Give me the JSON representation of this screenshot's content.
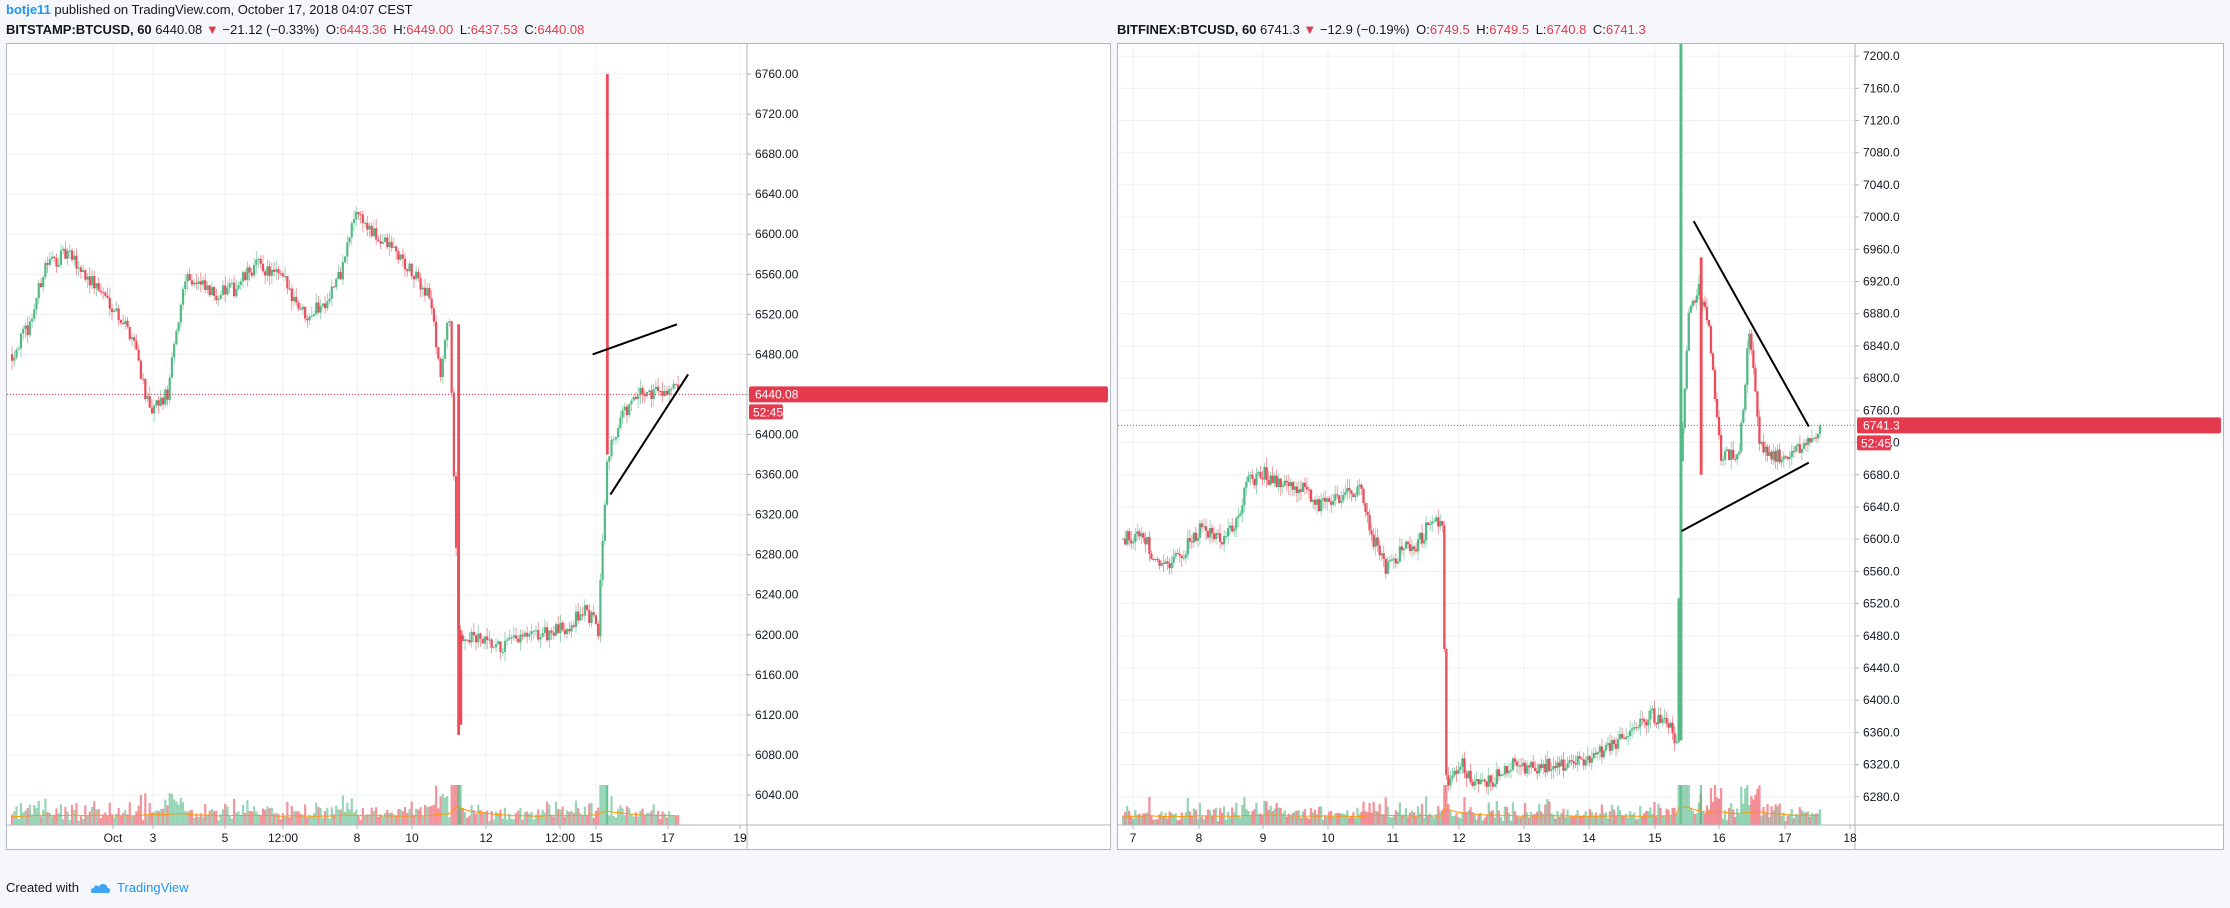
{
  "topbar": {
    "author": "botje11",
    "text": "published on TradingView.com, October 17, 2018 04:07 CEST"
  },
  "footer": {
    "created": "Created with",
    "brand": "TradingView"
  },
  "colors": {
    "up": "#53b987",
    "down": "#eb4d5c",
    "ma": "#ff9800",
    "trendline": "#000000",
    "price_line": "#e53a4d",
    "grid": "#eef0f4"
  },
  "chart_data": [
    {
      "type": "candlestick",
      "symbol": "BITSTAMP:BTCUSD, 60",
      "last": "6440.08",
      "change": "−21.12 (−0.33%)",
      "ohlc": {
        "O": "6443.36",
        "H": "6449.00",
        "L": "6437.53",
        "C": "6440.08"
      },
      "price_label": "6440.08",
      "countdown": "52:45",
      "ylim": [
        6010,
        6790
      ],
      "y_ticks": [
        "6760.00",
        "6720.00",
        "6680.00",
        "6640.00",
        "6600.00",
        "6560.00",
        "6520.00",
        "6480.00",
        "6440.00",
        "6400.00",
        "6360.00",
        "6320.00",
        "6280.00",
        "6240.00",
        "6200.00",
        "6160.00",
        "6120.00",
        "6080.00",
        "6040.00"
      ],
      "x_ticks": [
        "Oct",
        "3",
        "5",
        "12:00",
        "8",
        "10",
        "12",
        "12:00",
        "15",
        "17",
        "19"
      ],
      "current_price": 6440.08,
      "anchors": [
        [
          0,
          6480
        ],
        [
          8,
          6510
        ],
        [
          15,
          6570
        ],
        [
          25,
          6580
        ],
        [
          35,
          6555
        ],
        [
          45,
          6530
        ],
        [
          55,
          6495
        ],
        [
          62,
          6420
        ],
        [
          70,
          6440
        ],
        [
          78,
          6560
        ],
        [
          90,
          6540
        ],
        [
          100,
          6545
        ],
        [
          110,
          6570
        ],
        [
          122,
          6555
        ],
        [
          132,
          6520
        ],
        [
          140,
          6530
        ],
        [
          148,
          6560
        ],
        [
          155,
          6625
        ],
        [
          162,
          6600
        ],
        [
          172,
          6585
        ],
        [
          180,
          6560
        ],
        [
          188,
          6540
        ],
        [
          193,
          6460
        ],
        [
          197,
          6520
        ],
        [
          201,
          6200
        ],
        [
          210,
          6195
        ],
        [
          218,
          6185
        ],
        [
          228,
          6195
        ],
        [
          238,
          6200
        ],
        [
          248,
          6205
        ],
        [
          258,
          6225
        ],
        [
          264,
          6205
        ],
        [
          268,
          6380
        ],
        [
          275,
          6420
        ],
        [
          283,
          6440
        ],
        [
          292,
          6445
        ],
        [
          300,
          6445
        ]
      ],
      "spikes": [
        [
          268,
          6760,
          6380
        ],
        [
          201,
          6510,
          6100
        ],
        [
          202,
          6200,
          6110
        ]
      ],
      "trendlines": [
        [
          262,
          6480,
          300,
          6510
        ],
        [
          270,
          6340,
          305,
          6460
        ]
      ]
    },
    {
      "type": "candlestick",
      "symbol": "BITFINEX:BTCUSD, 60",
      "last": "6741.3",
      "change": "−12.9 (−0.19%)",
      "ohlc": {
        "O": "6749.5",
        "H": "6749.5",
        "L": "6740.8",
        "C": "6741.3"
      },
      "price_label": "6741.3",
      "countdown": "52:45",
      "ylim": [
        6245,
        7215
      ],
      "y_ticks": [
        "7200.0",
        "7160.0",
        "7120.0",
        "7080.0",
        "7040.0",
        "7000.0",
        "6960.0",
        "6920.0",
        "6880.0",
        "6840.0",
        "6800.0",
        "6760.0",
        "6720.0",
        "6680.0",
        "6640.0",
        "6600.0",
        "6560.0",
        "6520.0",
        "6480.0",
        "6440.0",
        "6400.0",
        "6360.0",
        "6320.0",
        "6280.0"
      ],
      "x_ticks": [
        "7",
        "8",
        "9",
        "10",
        "11",
        "12",
        "13",
        "14",
        "15",
        "16",
        "17",
        "18"
      ],
      "current_price": 6741.3,
      "anchors": [
        [
          0,
          6600
        ],
        [
          10,
          6605
        ],
        [
          18,
          6565
        ],
        [
          28,
          6580
        ],
        [
          38,
          6610
        ],
        [
          48,
          6600
        ],
        [
          55,
          6620
        ],
        [
          62,
          6670
        ],
        [
          70,
          6680
        ],
        [
          80,
          6665
        ],
        [
          90,
          6660
        ],
        [
          98,
          6640
        ],
        [
          108,
          6655
        ],
        [
          118,
          6660
        ],
        [
          124,
          6600
        ],
        [
          130,
          6560
        ],
        [
          138,
          6585
        ],
        [
          146,
          6595
        ],
        [
          154,
          6630
        ],
        [
          158,
          6620
        ],
        [
          160,
          6300
        ],
        [
          168,
          6320
        ],
        [
          175,
          6295
        ],
        [
          182,
          6300
        ],
        [
          192,
          6320
        ],
        [
          204,
          6315
        ],
        [
          215,
          6320
        ],
        [
          226,
          6325
        ],
        [
          236,
          6335
        ],
        [
          244,
          6345
        ],
        [
          252,
          6360
        ],
        [
          262,
          6380
        ],
        [
          270,
          6370
        ],
        [
          274,
          6350
        ],
        [
          276,
          6700
        ],
        [
          280,
          6880
        ],
        [
          285,
          6910
        ],
        [
          290,
          6860
        ],
        [
          296,
          6700
        ],
        [
          305,
          6710
        ],
        [
          310,
          6860
        ],
        [
          315,
          6720
        ],
        [
          322,
          6700
        ],
        [
          330,
          6710
        ],
        [
          338,
          6715
        ],
        [
          345,
          6741
        ]
      ],
      "spikes": [
        [
          276,
          7215,
          6350
        ],
        [
          286,
          6950,
          6680
        ]
      ],
      "trendlines": [
        [
          283,
          6995,
          340,
          6740
        ],
        [
          277,
          6610,
          340,
          6695
        ]
      ]
    }
  ]
}
